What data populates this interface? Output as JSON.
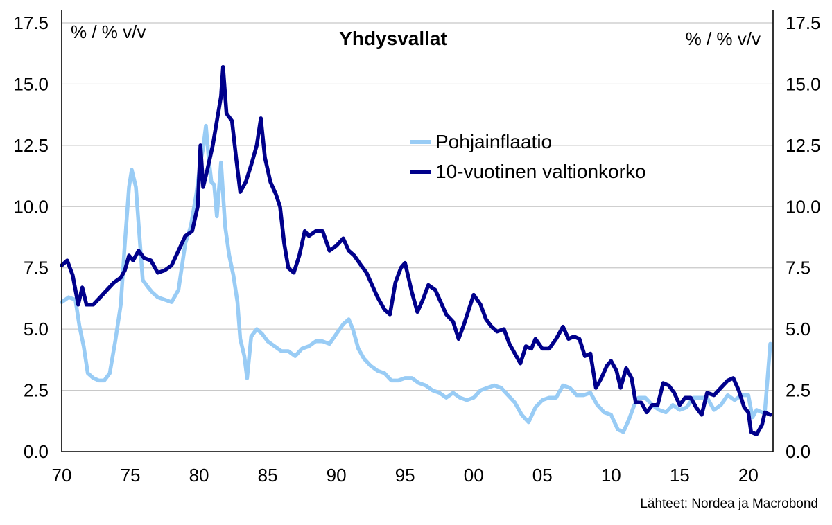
{
  "chart_data": {
    "type": "line",
    "title": "Yhdysvallat",
    "left_axis_label": "% / % v/v",
    "right_axis_label": "% / % v/v",
    "source": "Lähteet: Nordea ja Macrobond",
    "xlim": [
      1970,
      2021.8
    ],
    "ylim": [
      0,
      17.5
    ],
    "yticks": [
      "0.0",
      "2.5",
      "5.0",
      "7.5",
      "10.0",
      "12.5",
      "15.0",
      "17.5"
    ],
    "xticks": [
      {
        "value": 1970,
        "label": "70"
      },
      {
        "value": 1975,
        "label": "75"
      },
      {
        "value": 1980,
        "label": "80"
      },
      {
        "value": 1985,
        "label": "85"
      },
      {
        "value": 1990,
        "label": "90"
      },
      {
        "value": 1995,
        "label": "95"
      },
      {
        "value": 2000,
        "label": "00"
      },
      {
        "value": 2005,
        "label": "05"
      },
      {
        "value": 2010,
        "label": "10"
      },
      {
        "value": 2015,
        "label": "15"
      },
      {
        "value": 2020,
        "label": "20"
      }
    ],
    "grid": "horizontal",
    "legend_position": "upper-center-right",
    "series": [
      {
        "name": "Pohjainflaatio",
        "color": "#99CCF5",
        "points": [
          [
            1970.0,
            6.1
          ],
          [
            1970.5,
            6.3
          ],
          [
            1971.0,
            6.2
          ],
          [
            1971.3,
            5.1
          ],
          [
            1971.6,
            4.3
          ],
          [
            1971.9,
            3.2
          ],
          [
            1972.3,
            3.0
          ],
          [
            1972.7,
            2.9
          ],
          [
            1973.1,
            2.9
          ],
          [
            1973.5,
            3.2
          ],
          [
            1973.9,
            4.5
          ],
          [
            1974.3,
            6.0
          ],
          [
            1974.6,
            8.5
          ],
          [
            1974.9,
            10.8
          ],
          [
            1975.1,
            11.5
          ],
          [
            1975.4,
            10.8
          ],
          [
            1975.7,
            8.5
          ],
          [
            1975.9,
            7.0
          ],
          [
            1976.3,
            6.7
          ],
          [
            1976.6,
            6.5
          ],
          [
            1977.0,
            6.3
          ],
          [
            1977.5,
            6.2
          ],
          [
            1978.0,
            6.1
          ],
          [
            1978.5,
            6.6
          ],
          [
            1979.0,
            8.5
          ],
          [
            1979.4,
            9.2
          ],
          [
            1979.8,
            10.5
          ],
          [
            1980.1,
            11.8
          ],
          [
            1980.3,
            12.4
          ],
          [
            1980.5,
            13.3
          ],
          [
            1980.7,
            12.0
          ],
          [
            1980.9,
            11.0
          ],
          [
            1981.1,
            10.9
          ],
          [
            1981.3,
            9.6
          ],
          [
            1981.6,
            11.8
          ],
          [
            1981.9,
            9.2
          ],
          [
            1982.2,
            8.0
          ],
          [
            1982.5,
            7.2
          ],
          [
            1982.8,
            6.1
          ],
          [
            1983.0,
            4.6
          ],
          [
            1983.3,
            3.9
          ],
          [
            1983.5,
            3.0
          ],
          [
            1983.8,
            4.7
          ],
          [
            1984.2,
            5.0
          ],
          [
            1984.6,
            4.8
          ],
          [
            1985.0,
            4.5
          ],
          [
            1985.5,
            4.3
          ],
          [
            1986.0,
            4.1
          ],
          [
            1986.5,
            4.1
          ],
          [
            1987.0,
            3.9
          ],
          [
            1987.5,
            4.2
          ],
          [
            1988.0,
            4.3
          ],
          [
            1988.5,
            4.5
          ],
          [
            1989.0,
            4.5
          ],
          [
            1989.5,
            4.4
          ],
          [
            1990.0,
            4.8
          ],
          [
            1990.5,
            5.2
          ],
          [
            1990.9,
            5.4
          ],
          [
            1991.2,
            5.0
          ],
          [
            1991.6,
            4.2
          ],
          [
            1992.0,
            3.8
          ],
          [
            1992.5,
            3.5
          ],
          [
            1993.0,
            3.3
          ],
          [
            1993.5,
            3.2
          ],
          [
            1994.0,
            2.9
          ],
          [
            1994.5,
            2.9
          ],
          [
            1995.0,
            3.0
          ],
          [
            1995.5,
            3.0
          ],
          [
            1996.0,
            2.8
          ],
          [
            1996.5,
            2.7
          ],
          [
            1997.0,
            2.5
          ],
          [
            1997.5,
            2.4
          ],
          [
            1998.0,
            2.2
          ],
          [
            1998.5,
            2.4
          ],
          [
            1999.0,
            2.2
          ],
          [
            1999.5,
            2.1
          ],
          [
            2000.0,
            2.2
          ],
          [
            2000.5,
            2.5
          ],
          [
            2001.0,
            2.6
          ],
          [
            2001.5,
            2.7
          ],
          [
            2002.0,
            2.6
          ],
          [
            2002.5,
            2.3
          ],
          [
            2003.0,
            2.0
          ],
          [
            2003.5,
            1.5
          ],
          [
            2004.0,
            1.2
          ],
          [
            2004.5,
            1.8
          ],
          [
            2005.0,
            2.1
          ],
          [
            2005.5,
            2.2
          ],
          [
            2006.0,
            2.2
          ],
          [
            2006.5,
            2.7
          ],
          [
            2007.0,
            2.6
          ],
          [
            2007.5,
            2.3
          ],
          [
            2008.0,
            2.3
          ],
          [
            2008.5,
            2.4
          ],
          [
            2009.0,
            1.9
          ],
          [
            2009.5,
            1.6
          ],
          [
            2010.0,
            1.5
          ],
          [
            2010.5,
            0.9
          ],
          [
            2010.9,
            0.8
          ],
          [
            2011.3,
            1.3
          ],
          [
            2011.7,
            1.9
          ],
          [
            2012.0,
            2.2
          ],
          [
            2012.5,
            2.2
          ],
          [
            2013.0,
            1.9
          ],
          [
            2013.5,
            1.7
          ],
          [
            2014.0,
            1.6
          ],
          [
            2014.5,
            1.9
          ],
          [
            2015.0,
            1.7
          ],
          [
            2015.5,
            1.8
          ],
          [
            2016.0,
            2.2
          ],
          [
            2016.5,
            2.2
          ],
          [
            2017.0,
            2.2
          ],
          [
            2017.5,
            1.7
          ],
          [
            2018.0,
            1.9
          ],
          [
            2018.5,
            2.3
          ],
          [
            2019.0,
            2.1
          ],
          [
            2019.5,
            2.3
          ],
          [
            2020.0,
            2.3
          ],
          [
            2020.3,
            1.4
          ],
          [
            2020.6,
            1.7
          ],
          [
            2021.0,
            1.6
          ],
          [
            2021.2,
            1.6
          ],
          [
            2021.4,
            3.0
          ],
          [
            2021.6,
            4.4
          ]
        ]
      },
      {
        "name": "10-vuotinen valtionkorko",
        "color": "#00008B",
        "points": [
          [
            1970.0,
            7.6
          ],
          [
            1970.4,
            7.8
          ],
          [
            1970.8,
            7.2
          ],
          [
            1971.2,
            6.0
          ],
          [
            1971.5,
            6.7
          ],
          [
            1971.8,
            6.0
          ],
          [
            1972.3,
            6.0
          ],
          [
            1972.8,
            6.3
          ],
          [
            1973.3,
            6.6
          ],
          [
            1973.8,
            6.9
          ],
          [
            1974.3,
            7.1
          ],
          [
            1974.6,
            7.4
          ],
          [
            1974.9,
            8.0
          ],
          [
            1975.2,
            7.8
          ],
          [
            1975.6,
            8.2
          ],
          [
            1976.0,
            7.9
          ],
          [
            1976.5,
            7.8
          ],
          [
            1977.0,
            7.3
          ],
          [
            1977.5,
            7.4
          ],
          [
            1978.0,
            7.6
          ],
          [
            1978.5,
            8.2
          ],
          [
            1979.0,
            8.8
          ],
          [
            1979.5,
            9.0
          ],
          [
            1979.9,
            10.0
          ],
          [
            1980.1,
            12.5
          ],
          [
            1980.3,
            10.8
          ],
          [
            1980.6,
            11.5
          ],
          [
            1981.0,
            12.5
          ],
          [
            1981.3,
            13.5
          ],
          [
            1981.6,
            14.5
          ],
          [
            1981.75,
            15.7
          ],
          [
            1982.0,
            13.8
          ],
          [
            1982.4,
            13.5
          ],
          [
            1982.7,
            12.0
          ],
          [
            1983.0,
            10.6
          ],
          [
            1983.4,
            11.0
          ],
          [
            1983.8,
            11.7
          ],
          [
            1984.2,
            12.5
          ],
          [
            1984.5,
            13.6
          ],
          [
            1984.8,
            12.0
          ],
          [
            1985.2,
            11.0
          ],
          [
            1985.6,
            10.5
          ],
          [
            1985.9,
            10.0
          ],
          [
            1986.2,
            8.5
          ],
          [
            1986.5,
            7.5
          ],
          [
            1986.9,
            7.3
          ],
          [
            1987.3,
            8.0
          ],
          [
            1987.7,
            9.0
          ],
          [
            1988.0,
            8.8
          ],
          [
            1988.5,
            9.0
          ],
          [
            1989.0,
            9.0
          ],
          [
            1989.5,
            8.2
          ],
          [
            1990.0,
            8.4
          ],
          [
            1990.5,
            8.7
          ],
          [
            1990.9,
            8.2
          ],
          [
            1991.3,
            8.0
          ],
          [
            1991.8,
            7.6
          ],
          [
            1992.2,
            7.3
          ],
          [
            1992.6,
            6.8
          ],
          [
            1993.0,
            6.3
          ],
          [
            1993.5,
            5.8
          ],
          [
            1993.9,
            5.6
          ],
          [
            1994.3,
            6.9
          ],
          [
            1994.7,
            7.5
          ],
          [
            1995.0,
            7.7
          ],
          [
            1995.5,
            6.5
          ],
          [
            1995.9,
            5.7
          ],
          [
            1996.3,
            6.2
          ],
          [
            1996.7,
            6.8
          ],
          [
            1997.2,
            6.6
          ],
          [
            1997.6,
            6.1
          ],
          [
            1998.0,
            5.6
          ],
          [
            1998.5,
            5.3
          ],
          [
            1998.9,
            4.6
          ],
          [
            1999.3,
            5.2
          ],
          [
            1999.7,
            5.9
          ],
          [
            2000.0,
            6.4
          ],
          [
            2000.5,
            6.0
          ],
          [
            2000.9,
            5.4
          ],
          [
            2001.3,
            5.1
          ],
          [
            2001.7,
            4.9
          ],
          [
            2002.2,
            5.0
          ],
          [
            2002.6,
            4.4
          ],
          [
            2003.0,
            4.0
          ],
          [
            2003.4,
            3.6
          ],
          [
            2003.8,
            4.3
          ],
          [
            2004.2,
            4.2
          ],
          [
            2004.5,
            4.6
          ],
          [
            2005.0,
            4.2
          ],
          [
            2005.5,
            4.2
          ],
          [
            2006.0,
            4.6
          ],
          [
            2006.5,
            5.1
          ],
          [
            2006.9,
            4.6
          ],
          [
            2007.3,
            4.7
          ],
          [
            2007.7,
            4.6
          ],
          [
            2008.1,
            3.9
          ],
          [
            2008.5,
            4.0
          ],
          [
            2008.9,
            2.6
          ],
          [
            2009.3,
            3.0
          ],
          [
            2009.7,
            3.5
          ],
          [
            2010.0,
            3.7
          ],
          [
            2010.4,
            3.3
          ],
          [
            2010.7,
            2.6
          ],
          [
            2011.1,
            3.4
          ],
          [
            2011.5,
            3.0
          ],
          [
            2011.8,
            2.0
          ],
          [
            2012.2,
            2.0
          ],
          [
            2012.6,
            1.6
          ],
          [
            2013.0,
            1.9
          ],
          [
            2013.4,
            1.9
          ],
          [
            2013.8,
            2.8
          ],
          [
            2014.2,
            2.7
          ],
          [
            2014.6,
            2.4
          ],
          [
            2015.0,
            1.9
          ],
          [
            2015.4,
            2.2
          ],
          [
            2015.8,
            2.2
          ],
          [
            2016.2,
            1.8
          ],
          [
            2016.6,
            1.5
          ],
          [
            2017.0,
            2.4
          ],
          [
            2017.5,
            2.3
          ],
          [
            2018.0,
            2.6
          ],
          [
            2018.5,
            2.9
          ],
          [
            2018.9,
            3.0
          ],
          [
            2019.3,
            2.5
          ],
          [
            2019.7,
            1.8
          ],
          [
            2020.0,
            1.6
          ],
          [
            2020.2,
            0.8
          ],
          [
            2020.6,
            0.7
          ],
          [
            2021.0,
            1.1
          ],
          [
            2021.2,
            1.6
          ],
          [
            2021.6,
            1.5
          ]
        ]
      }
    ]
  }
}
